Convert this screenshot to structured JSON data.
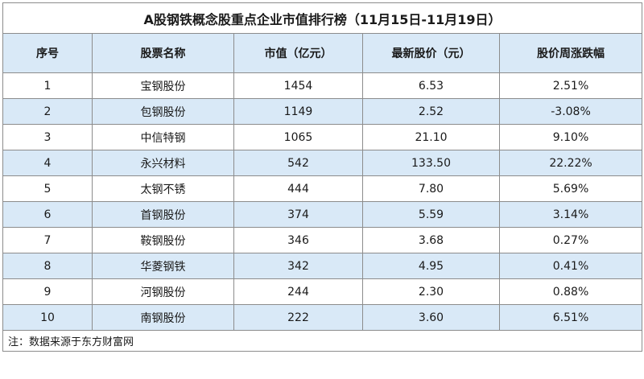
{
  "title": "A股钢铁概念股重点企业市值排行榜（11月15日-11月19日）",
  "headers": [
    "序号",
    "股票名称",
    "市值（亿元）",
    "最新股价（元）",
    "股价周涨跌幅"
  ],
  "rows": [
    [
      "1",
      "宝钢股份",
      "1454",
      "6.53",
      "2.51%"
    ],
    [
      "2",
      "包钢股份",
      "1149",
      "2.52",
      "-3.08%"
    ],
    [
      "3",
      "中信特钢",
      "1065",
      "21.10",
      "9.10%"
    ],
    [
      "4",
      "永兴材料",
      "542",
      "133.50",
      "22.22%"
    ],
    [
      "5",
      "太钢不锈",
      "444",
      "7.80",
      "5.69%"
    ],
    [
      "6",
      "首钢股份",
      "374",
      "5.59",
      "3.14%"
    ],
    [
      "7",
      "鞍钢股份",
      "346",
      "3.68",
      "0.27%"
    ],
    [
      "8",
      "华菱钢铁",
      "342",
      "4.95",
      "0.41%"
    ],
    [
      "9",
      "河钢股份",
      "244",
      "2.30",
      "0.88%"
    ],
    [
      "10",
      "南钢股份",
      "222",
      "3.60",
      "6.51%"
    ]
  ],
  "note": "注：数据来源于东方财富网",
  "colors": {
    "header_bg": "#d9e9f7",
    "alt_row_bg": "#d9e9f7",
    "border": "#8c8c8c"
  }
}
